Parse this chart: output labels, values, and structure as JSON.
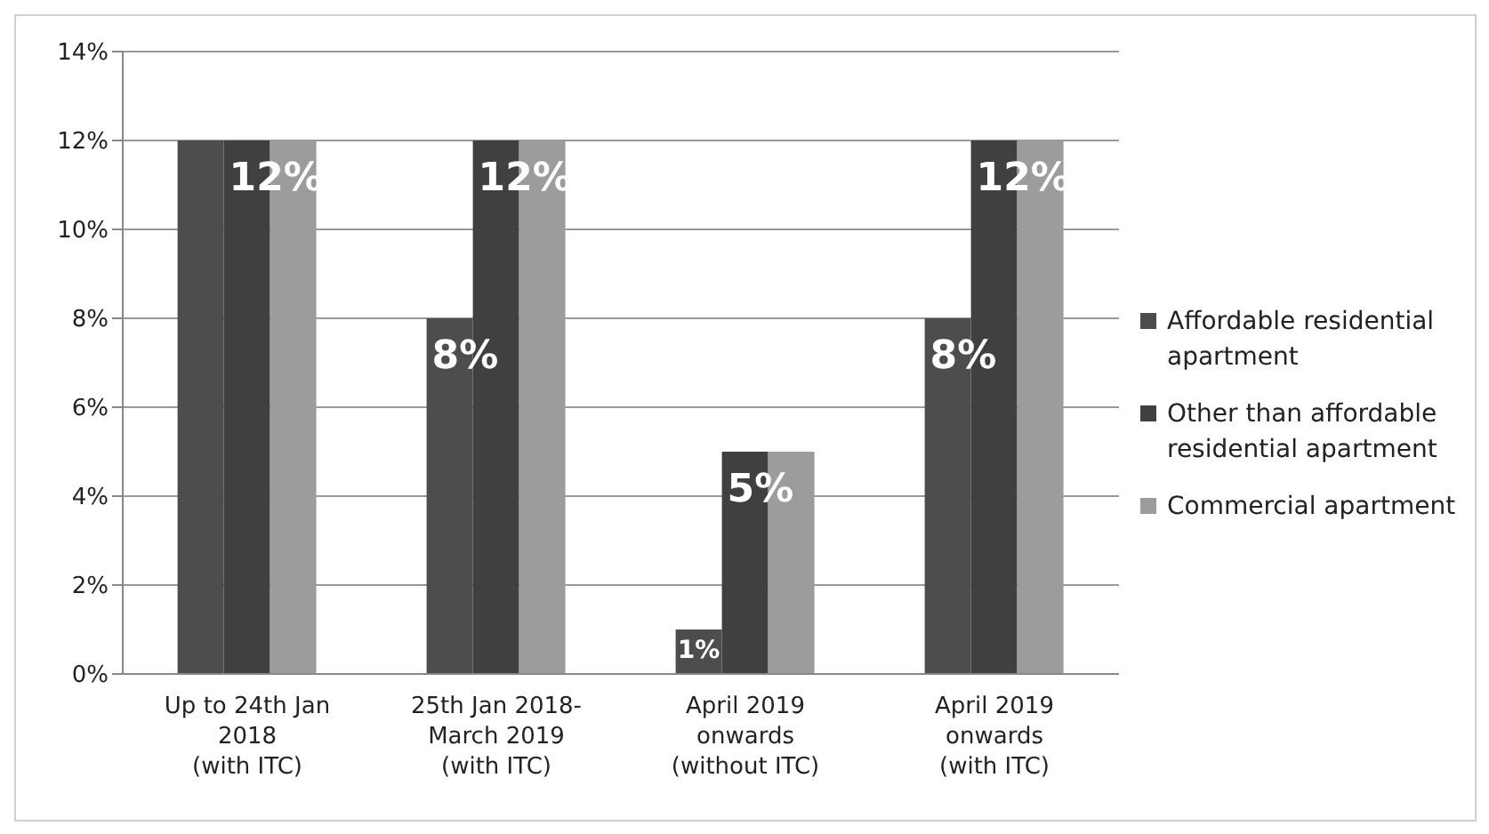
{
  "chart_data": {
    "type": "bar",
    "categories": [
      "Up to 24th Jan\n2018\n(with ITC)",
      "25th Jan 2018-\nMarch 2019\n(with ITC)",
      "April 2019\nonwards\n(without ITC)",
      "April 2019\nonwards\n(with ITC)"
    ],
    "series": [
      {
        "name": "Affordable residential apartment",
        "color": "#4d4d4d",
        "values": [
          12,
          8,
          1,
          8
        ],
        "value_labels": [
          null,
          "8%",
          "1%",
          "8%"
        ]
      },
      {
        "name": "Other than affordable residential apartment",
        "color": "#404040",
        "values": [
          12,
          12,
          5,
          12
        ],
        "value_labels": [
          "12%",
          "12%",
          "5%",
          "12%"
        ]
      },
      {
        "name": "Commercial apartment",
        "color": "#9c9c9c",
        "values": [
          12,
          12,
          5,
          12
        ],
        "value_labels": [
          null,
          null,
          null,
          null
        ]
      }
    ],
    "ylim": [
      0,
      14
    ],
    "yticks": [
      {
        "value": 0,
        "label": "0%"
      },
      {
        "value": 2,
        "label": "2%"
      },
      {
        "value": 4,
        "label": "4%"
      },
      {
        "value": 6,
        "label": "6%"
      },
      {
        "value": 8,
        "label": "8%"
      },
      {
        "value": 10,
        "label": "10%"
      },
      {
        "value": 12,
        "label": "12%"
      },
      {
        "value": 14,
        "label": "14%"
      }
    ],
    "grid": "y",
    "legend": "right"
  }
}
